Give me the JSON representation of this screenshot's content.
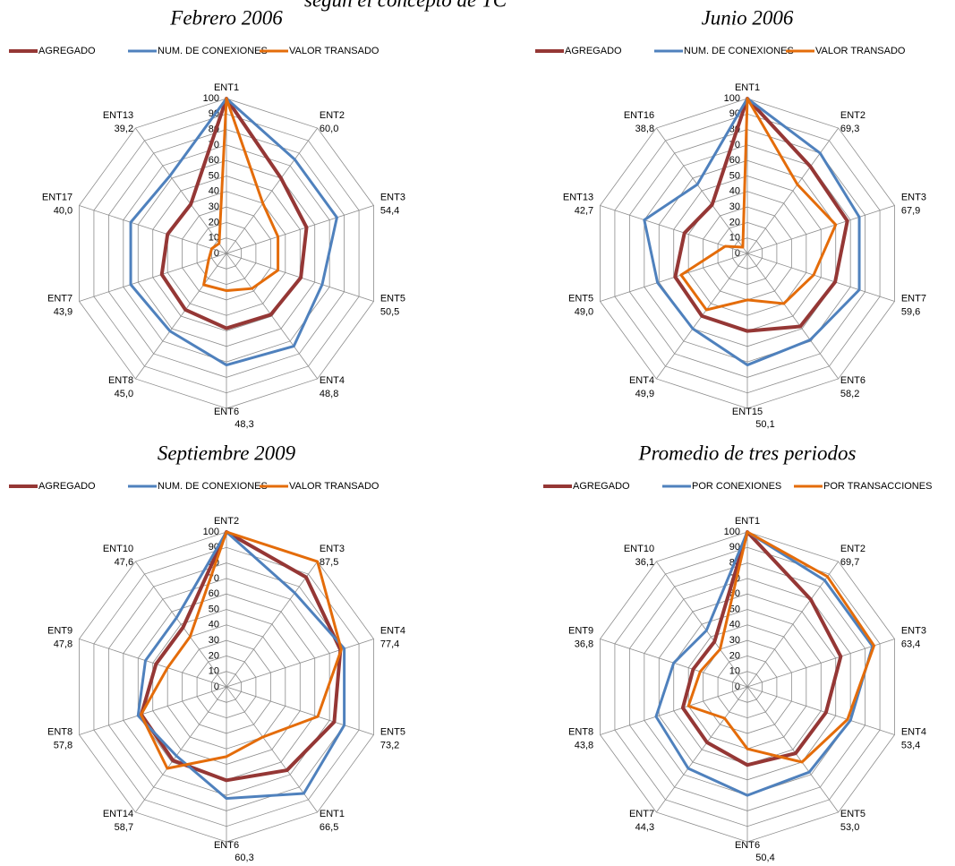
{
  "supertitle": "según el concepto de TC",
  "chart_data": [
    {
      "type": "radar",
      "title": "Febrero 2006",
      "categories": [
        "ENT1",
        "ENT2",
        "ENT3",
        "ENT5",
        "ENT4",
        "ENT6",
        "ENT8",
        "ENT7",
        "ENT17",
        "ENT13"
      ],
      "rlim": [
        0,
        100
      ],
      "rticks": [
        0,
        10,
        20,
        30,
        40,
        50,
        60,
        70,
        80,
        90,
        100
      ],
      "series": [
        {
          "name": "AGREGADO",
          "color": "#953735",
          "values": [
            100,
            60.0,
            54.4,
            50.5,
            48.8,
            48.3,
            45.0,
            43.9,
            40.0,
            39.2
          ],
          "value_labels": [
            null,
            "60,0",
            "54,4",
            "50,5",
            "48,8",
            "48,3",
            "45,0",
            "43,9",
            "40,0",
            "39,2"
          ]
        },
        {
          "name": "NUM. DE CONEXIONES",
          "color": "#4f81bd",
          "values": [
            100,
            75,
            75,
            65,
            74,
            72,
            62,
            65,
            65,
            62
          ]
        },
        {
          "name": "VALOR TRANSADO",
          "color": "#e46c0a",
          "values": [
            100,
            40,
            35,
            35,
            28,
            24,
            25,
            12,
            10,
            8
          ]
        }
      ]
    },
    {
      "type": "radar",
      "title": "Junio 2006",
      "categories": [
        "ENT1",
        "ENT2",
        "ENT3",
        "ENT7",
        "ENT6",
        "ENT15",
        "ENT4",
        "ENT5",
        "ENT13",
        "ENT16"
      ],
      "rlim": [
        0,
        100
      ],
      "rticks": [
        0,
        10,
        20,
        30,
        40,
        50,
        60,
        70,
        80,
        90,
        100
      ],
      "series": [
        {
          "name": "AGREGADO",
          "color": "#953735",
          "values": [
            100,
            69.3,
            67.9,
            59.6,
            58.2,
            50.1,
            49.9,
            49.0,
            42.7,
            38.8
          ],
          "value_labels": [
            null,
            "69,3",
            "67,9",
            "59,6",
            "58,2",
            "50,1",
            "49,9",
            "49,0",
            "42,7",
            "38,8"
          ]
        },
        {
          "name": "NUM. DE CONEXIONES",
          "color": "#4f81bd",
          "values": [
            100,
            80,
            76,
            76,
            69,
            72,
            60,
            61,
            70,
            55
          ]
        },
        {
          "name": "VALOR TRANSADO",
          "color": "#e46c0a",
          "values": [
            100,
            55,
            60,
            45,
            40,
            30,
            45,
            45,
            15,
            5
          ]
        }
      ]
    },
    {
      "type": "radar",
      "title": "Septiembre 2009",
      "categories": [
        "ENT2",
        "ENT3",
        "ENT4",
        "ENT5",
        "ENT1",
        "ENT6",
        "ENT14",
        "ENT8",
        "ENT9",
        "ENT10"
      ],
      "rlim": [
        0,
        100
      ],
      "rticks": [
        0,
        10,
        20,
        30,
        40,
        50,
        60,
        70,
        80,
        90,
        100
      ],
      "series": [
        {
          "name": "AGREGADO",
          "color": "#953735",
          "values": [
            100,
            87.5,
            77.4,
            73.2,
            66.5,
            60.3,
            58.7,
            57.8,
            47.8,
            47.6
          ],
          "value_labels": [
            null,
            "87,5",
            "77,4",
            "73,2",
            "66,5",
            "60,3",
            "58,7",
            "57,8",
            "47,8",
            "47,6"
          ]
        },
        {
          "name": "NUM. DE CONEXIONES",
          "color": "#4f81bd",
          "values": [
            100,
            75,
            80,
            80,
            85,
            72,
            55,
            60,
            55,
            55
          ]
        },
        {
          "name": "VALOR TRANSADO",
          "color": "#e46c0a",
          "values": [
            100,
            100,
            78,
            62,
            40,
            45,
            65,
            58,
            40,
            40
          ]
        }
      ]
    },
    {
      "type": "radar",
      "title": "Promedio de tres periodos",
      "categories": [
        "ENT1",
        "ENT2",
        "ENT3",
        "ENT4",
        "ENT5",
        "ENT6",
        "ENT7",
        "ENT8",
        "ENT9",
        "ENT10"
      ],
      "rlim": [
        0,
        100
      ],
      "rticks": [
        0,
        10,
        20,
        30,
        40,
        50,
        60,
        70,
        80,
        90,
        100
      ],
      "series": [
        {
          "name": "AGREGADO",
          "color": "#953735",
          "values": [
            100,
            69.7,
            63.4,
            53.4,
            53.0,
            50.4,
            44.3,
            43.8,
            36.8,
            36.1
          ],
          "value_labels": [
            null,
            "69,7",
            "63,4",
            "53,4",
            "53,0",
            "50,4",
            "44,3",
            "43,8",
            "36,8",
            "36,1"
          ]
        },
        {
          "name": "POR CONEXIONES",
          "color": "#4f81bd",
          "values": [
            100,
            85,
            85,
            70,
            68,
            70,
            65,
            62,
            50,
            45
          ]
        },
        {
          "name": "POR TRANSACCIONES",
          "color": "#e46c0a",
          "values": [
            100,
            88,
            86,
            68,
            60,
            40,
            25,
            40,
            32,
            30
          ]
        }
      ]
    }
  ]
}
